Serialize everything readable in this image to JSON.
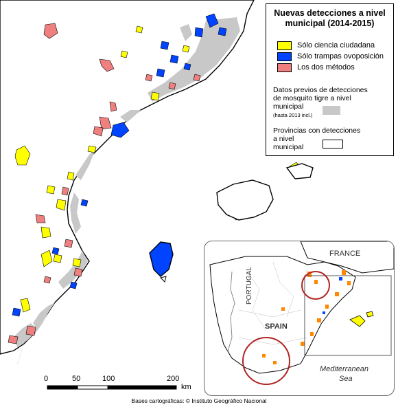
{
  "legend": {
    "title_line1": "Nuevas detecciones a nivel",
    "title_line2": "municipal (2014-2015)",
    "items": [
      {
        "label": "Sólo ciencia ciudadana",
        "color": "#ffff00"
      },
      {
        "label": "Sólo trampas ovoposición",
        "color": "#0044ff"
      },
      {
        "label": "Los dos métodos",
        "color": "#f08080"
      }
    ],
    "previous_line1": "Datos previos de detecciones",
    "previous_line2": "de mosquito tigre a nivel",
    "previous_line3": "municipal",
    "previous_note": "(hasta 2013 incl.)",
    "previous_color": "#c8c8c8",
    "provinces_line1": "Provincias con detecciones",
    "provinces_line2": "a nivel",
    "provinces_line3": "municipal"
  },
  "inset": {
    "france": "FRANCE",
    "portugal": "PORTUGAL",
    "spain": "SPAIN",
    "sea_line1": "Mediterranean",
    "sea_line2": "Sea"
  },
  "scale_bar": {
    "ticks": [
      "0",
      "50",
      "100",
      "200"
    ],
    "unit": "km"
  },
  "credit": "Bases cartográficas: © Instituto Geográfico Nacional",
  "colors": {
    "citizen": "#ffff00",
    "traps": "#0044ff",
    "both": "#f08080",
    "previous": "#c8c8c8",
    "sea": "#ffffff",
    "land": "#ffffff"
  }
}
